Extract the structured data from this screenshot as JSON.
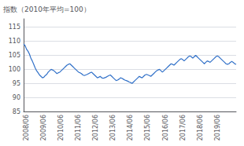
{
  "chart_data": {
    "type": "line",
    "ylabel": "指数（2010年平均=100）",
    "categories": [
      null,
      null,
      "2008/06",
      null,
      null,
      null,
      null,
      null,
      null,
      null,
      null,
      null,
      null,
      null,
      "2009/06",
      null,
      null,
      null,
      null,
      null,
      null,
      null,
      null,
      null,
      null,
      null,
      "2010/06",
      null,
      null,
      null,
      null,
      null,
      null,
      null,
      null,
      null,
      null,
      null,
      "2011/06",
      null,
      null,
      null,
      null,
      null,
      null,
      null,
      null,
      null,
      null,
      null,
      "2012/06",
      null,
      null,
      null,
      null,
      null,
      null,
      null,
      null,
      null,
      null,
      null,
      "2013/06",
      null,
      null,
      null,
      null,
      null,
      null,
      null,
      null,
      null,
      null,
      null,
      "2014/06",
      null,
      null,
      null,
      null,
      null,
      null,
      null,
      null,
      null,
      null,
      null,
      "2015/06",
      null,
      null,
      null,
      null,
      null,
      null,
      null,
      null,
      null,
      null,
      null,
      "2016/06",
      null,
      null,
      null,
      null,
      null,
      null,
      null,
      null,
      null,
      null,
      null,
      "2017/06",
      null,
      null,
      null,
      null,
      null,
      null,
      null,
      null,
      null,
      null,
      null,
      "2018/06",
      null,
      null,
      null,
      null,
      null,
      null,
      null,
      null,
      null,
      null,
      null,
      "2019/06",
      null,
      null,
      null,
      null,
      null,
      null,
      null,
      null,
      null,
      null,
      null,
      null,
      null
    ],
    "values": [
      109.0,
      108.5,
      107.2,
      106.5,
      105.5,
      104.0,
      103.0,
      101.8,
      100.5,
      99.5,
      98.8,
      98.0,
      97.5,
      97.0,
      97.2,
      97.8,
      98.2,
      99.0,
      99.5,
      100.0,
      99.8,
      99.5,
      99.0,
      98.5,
      98.8,
      99.0,
      99.5,
      100.0,
      100.5,
      101.0,
      101.5,
      101.8,
      102.0,
      101.5,
      101.0,
      100.5,
      100.0,
      99.5,
      99.0,
      98.8,
      98.5,
      98.0,
      97.8,
      98.0,
      98.2,
      98.5,
      98.8,
      99.0,
      98.5,
      98.0,
      97.5,
      97.0,
      97.2,
      97.5,
      97.0,
      96.8,
      97.0,
      97.2,
      97.5,
      97.8,
      98.0,
      97.5,
      97.0,
      96.5,
      96.0,
      96.2,
      96.5,
      97.0,
      96.8,
      96.5,
      96.2,
      96.0,
      95.8,
      95.5,
      95.3,
      95.0,
      95.5,
      96.0,
      96.5,
      97.0,
      97.5,
      97.2,
      97.0,
      97.5,
      98.0,
      98.2,
      98.0,
      97.8,
      97.5,
      98.0,
      98.5,
      99.0,
      99.5,
      99.8,
      100.0,
      99.5,
      99.0,
      99.5,
      100.0,
      100.5,
      101.0,
      101.5,
      102.0,
      101.8,
      101.5,
      102.0,
      102.5,
      103.0,
      103.5,
      103.8,
      103.5,
      103.0,
      103.5,
      104.0,
      104.5,
      104.8,
      104.5,
      104.0,
      104.5,
      105.0,
      104.5,
      104.0,
      103.5,
      103.0,
      102.5,
      102.0,
      102.5,
      103.0,
      102.8,
      102.5,
      103.0,
      103.5,
      104.0,
      104.5,
      104.8,
      104.5,
      104.0,
      103.5,
      103.0,
      102.5,
      102.0,
      101.8,
      102.0,
      102.5,
      102.8,
      102.5,
      102.0,
      101.8
    ],
    "color": "#3070C8",
    "ylim": [
      85,
      118
    ],
    "yticks": [
      85,
      90,
      95,
      100,
      105,
      110,
      115
    ],
    "grid": true
  }
}
